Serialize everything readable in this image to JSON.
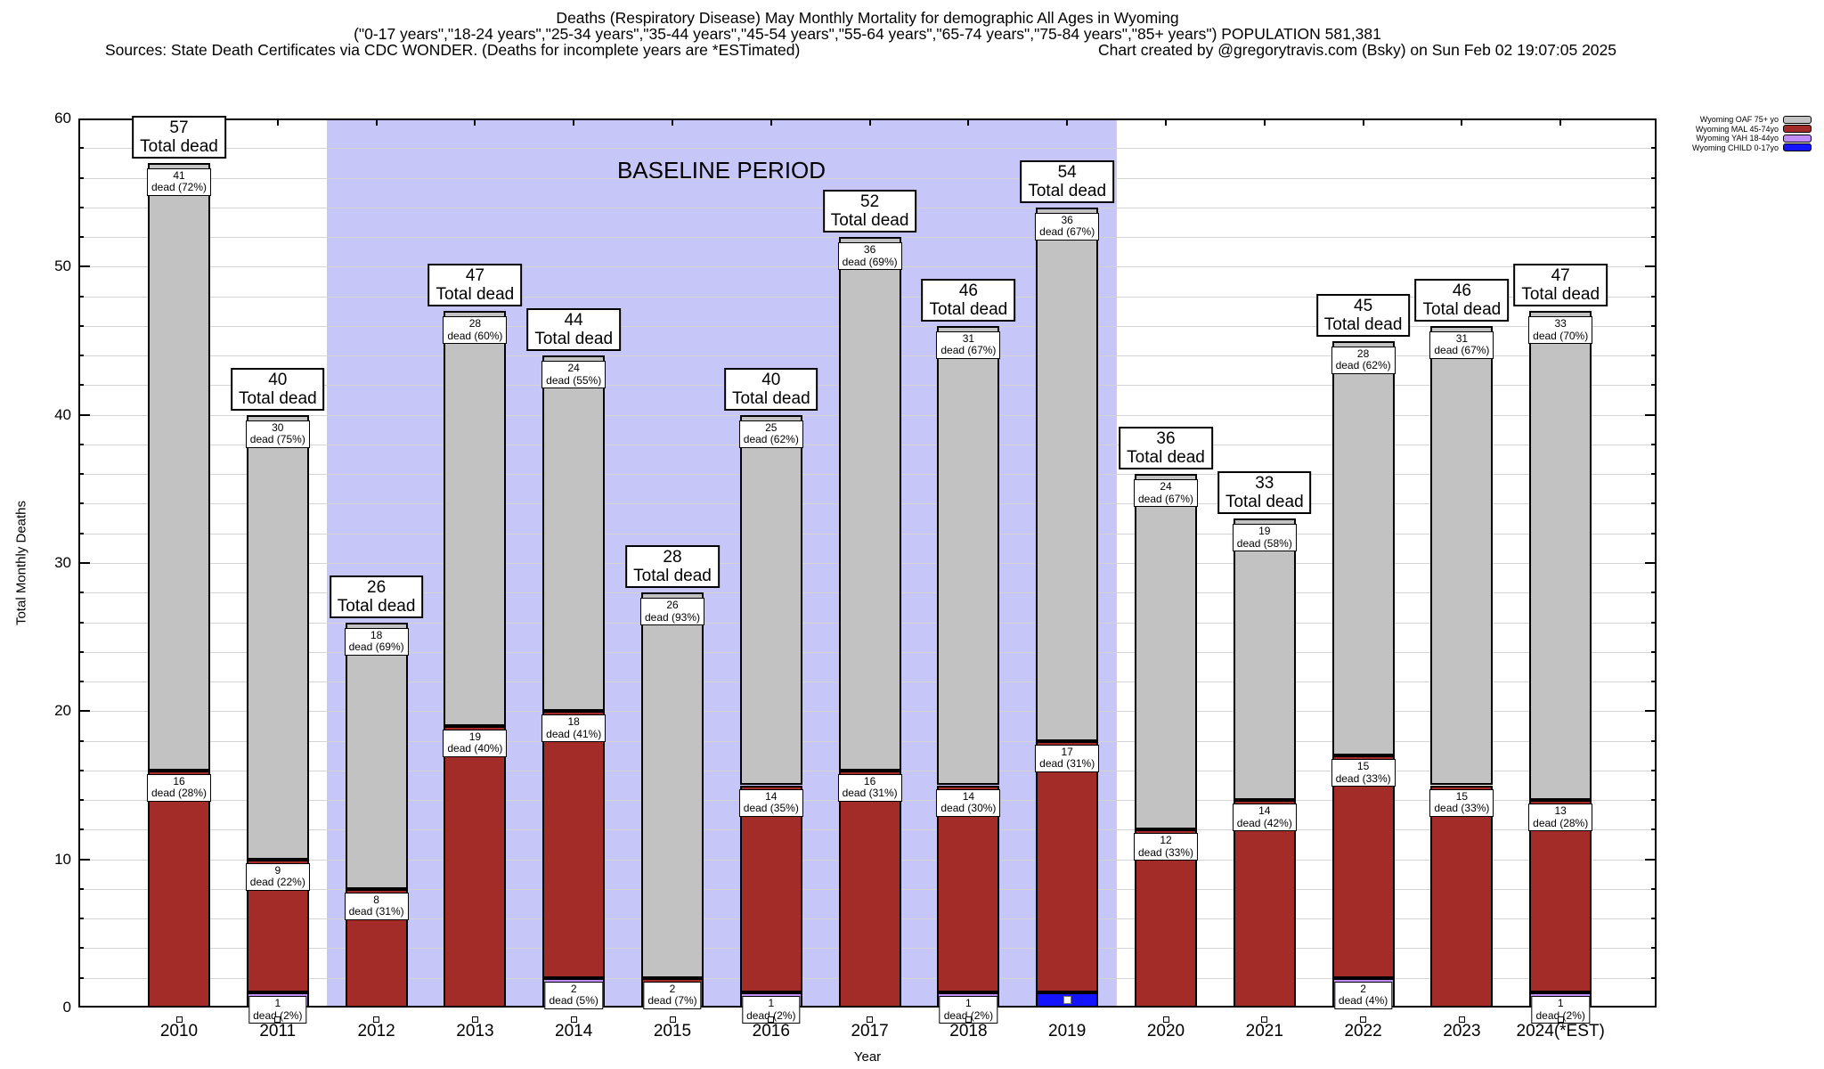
{
  "header": {
    "line1": "Deaths (Respiratory Disease) May Monthly Mortality for demographic All Ages in Wyoming",
    "line2": "(\"0-17 years\",\"18-24 years\",\"25-34 years\",\"35-44 years\",\"45-54 years\",\"55-64 years\",\"65-74 years\",\"75-84 years\",\"85+ years\") POPULATION 581,381",
    "line3_left": "Sources: State Death Certificates via CDC WONDER. (Deaths for incomplete years are *ESTimated)",
    "line3_right": "Chart created by @gregorytravis.com (Bsky) on Sun Feb 02 19:07:05 2025"
  },
  "legend": {
    "order": [
      "oaf",
      "mal",
      "yah",
      "child"
    ]
  },
  "chart_data": {
    "type": "bar",
    "stacked": true,
    "title": "Deaths (Respiratory Disease) May Monthly Mortality for demographic All Ages in Wyoming",
    "xlabel": "Year",
    "ylabel": "Total Monthly Deaths",
    "ylim": [
      0,
      60
    ],
    "ytick_step": 10,
    "grid_step": 2,
    "grid_on": true,
    "legend_position": "top-right-outside",
    "baseline_band": {
      "label": "BASELINE PERIOD",
      "from_year": "2012",
      "to_year": "2019",
      "color": "#c6c6f8"
    },
    "series_meta": [
      {
        "key": "child",
        "legend": "Wyoming CHILD 0-17yo",
        "color": "#1414ff"
      },
      {
        "key": "yah",
        "legend": "Wyoming YAH 18-44yo",
        "color": "#c18cfb"
      },
      {
        "key": "mal",
        "legend": "Wyoming MAL 45-74yo",
        "color": "#a32c29"
      },
      {
        "key": "oaf",
        "legend": "Wyoming OAF 75+ yo",
        "color": "#c2c2c2"
      }
    ],
    "total_label_suffix": "Total dead",
    "segment_label_prefix": "dead",
    "years": [
      {
        "label": "2010",
        "total": 57,
        "axis_marker": true,
        "segments": [
          {
            "key": "mal",
            "value": 16,
            "pct": "28%"
          },
          {
            "key": "oaf",
            "value": 41,
            "pct": "72%"
          }
        ]
      },
      {
        "label": "2011",
        "total": 40,
        "axis_marker": true,
        "segments": [
          {
            "key": "yah",
            "value": 1,
            "pct": "2%"
          },
          {
            "key": "mal",
            "value": 9,
            "pct": "22%"
          },
          {
            "key": "oaf",
            "value": 30,
            "pct": "75%"
          }
        ]
      },
      {
        "label": "2012",
        "total": 26,
        "axis_marker": true,
        "segments": [
          {
            "key": "mal",
            "value": 8,
            "pct": "31%"
          },
          {
            "key": "oaf",
            "value": 18,
            "pct": "69%"
          }
        ]
      },
      {
        "label": "2013",
        "total": 47,
        "axis_marker": true,
        "segments": [
          {
            "key": "mal",
            "value": 19,
            "pct": "40%"
          },
          {
            "key": "oaf",
            "value": 28,
            "pct": "60%"
          }
        ]
      },
      {
        "label": "2014",
        "total": 44,
        "axis_marker": true,
        "segments": [
          {
            "key": "yah",
            "value": 2,
            "pct": "5%"
          },
          {
            "key": "mal",
            "value": 18,
            "pct": "41%"
          },
          {
            "key": "oaf",
            "value": 24,
            "pct": "55%"
          }
        ]
      },
      {
        "label": "2015",
        "total": 28,
        "axis_marker": true,
        "segments": [
          {
            "key": "mal",
            "value": 2,
            "pct": "7%"
          },
          {
            "key": "oaf",
            "value": 26,
            "pct": "93%"
          }
        ]
      },
      {
        "label": "2016",
        "total": 40,
        "axis_marker": true,
        "segments": [
          {
            "key": "yah",
            "value": 1,
            "pct": "2%"
          },
          {
            "key": "mal",
            "value": 14,
            "pct": "35%"
          },
          {
            "key": "oaf",
            "value": 25,
            "pct": "62%"
          }
        ]
      },
      {
        "label": "2017",
        "total": 52,
        "axis_marker": true,
        "segments": [
          {
            "key": "mal",
            "value": 16,
            "pct": "31%"
          },
          {
            "key": "oaf",
            "value": 36,
            "pct": "69%"
          }
        ]
      },
      {
        "label": "2018",
        "total": 46,
        "axis_marker": true,
        "segments": [
          {
            "key": "yah",
            "value": 1,
            "pct": "2%"
          },
          {
            "key": "mal",
            "value": 14,
            "pct": "30%"
          },
          {
            "key": "oaf",
            "value": 31,
            "pct": "67%"
          }
        ]
      },
      {
        "label": "2019",
        "total": 54,
        "axis_marker": false,
        "segments": [
          {
            "key": "child",
            "value": 1,
            "pct": null,
            "marker": "white-square"
          },
          {
            "key": "mal",
            "value": 17,
            "pct": "31%"
          },
          {
            "key": "oaf",
            "value": 36,
            "pct": "67%"
          }
        ]
      },
      {
        "label": "2020",
        "total": 36,
        "axis_marker": true,
        "segments": [
          {
            "key": "mal",
            "value": 12,
            "pct": "33%"
          },
          {
            "key": "oaf",
            "value": 24,
            "pct": "67%"
          }
        ]
      },
      {
        "label": "2021",
        "total": 33,
        "axis_marker": true,
        "segments": [
          {
            "key": "mal",
            "value": 14,
            "pct": "42%"
          },
          {
            "key": "oaf",
            "value": 19,
            "pct": "58%"
          }
        ]
      },
      {
        "label": "2022",
        "total": 45,
        "axis_marker": true,
        "segments": [
          {
            "key": "yah",
            "value": 2,
            "pct": "4%"
          },
          {
            "key": "mal",
            "value": 15,
            "pct": "33%"
          },
          {
            "key": "oaf",
            "value": 28,
            "pct": "62%"
          }
        ]
      },
      {
        "label": "2023",
        "total": 46,
        "axis_marker": true,
        "segments": [
          {
            "key": "mal",
            "value": 15,
            "pct": "33%"
          },
          {
            "key": "oaf",
            "value": 31,
            "pct": "67%"
          }
        ]
      },
      {
        "label": "2024(*EST)",
        "total": 47,
        "axis_marker": true,
        "segments": [
          {
            "key": "yah",
            "value": 1,
            "pct": "2%"
          },
          {
            "key": "mal",
            "value": 13,
            "pct": "28%"
          },
          {
            "key": "oaf",
            "value": 33,
            "pct": "70%"
          }
        ]
      }
    ]
  }
}
